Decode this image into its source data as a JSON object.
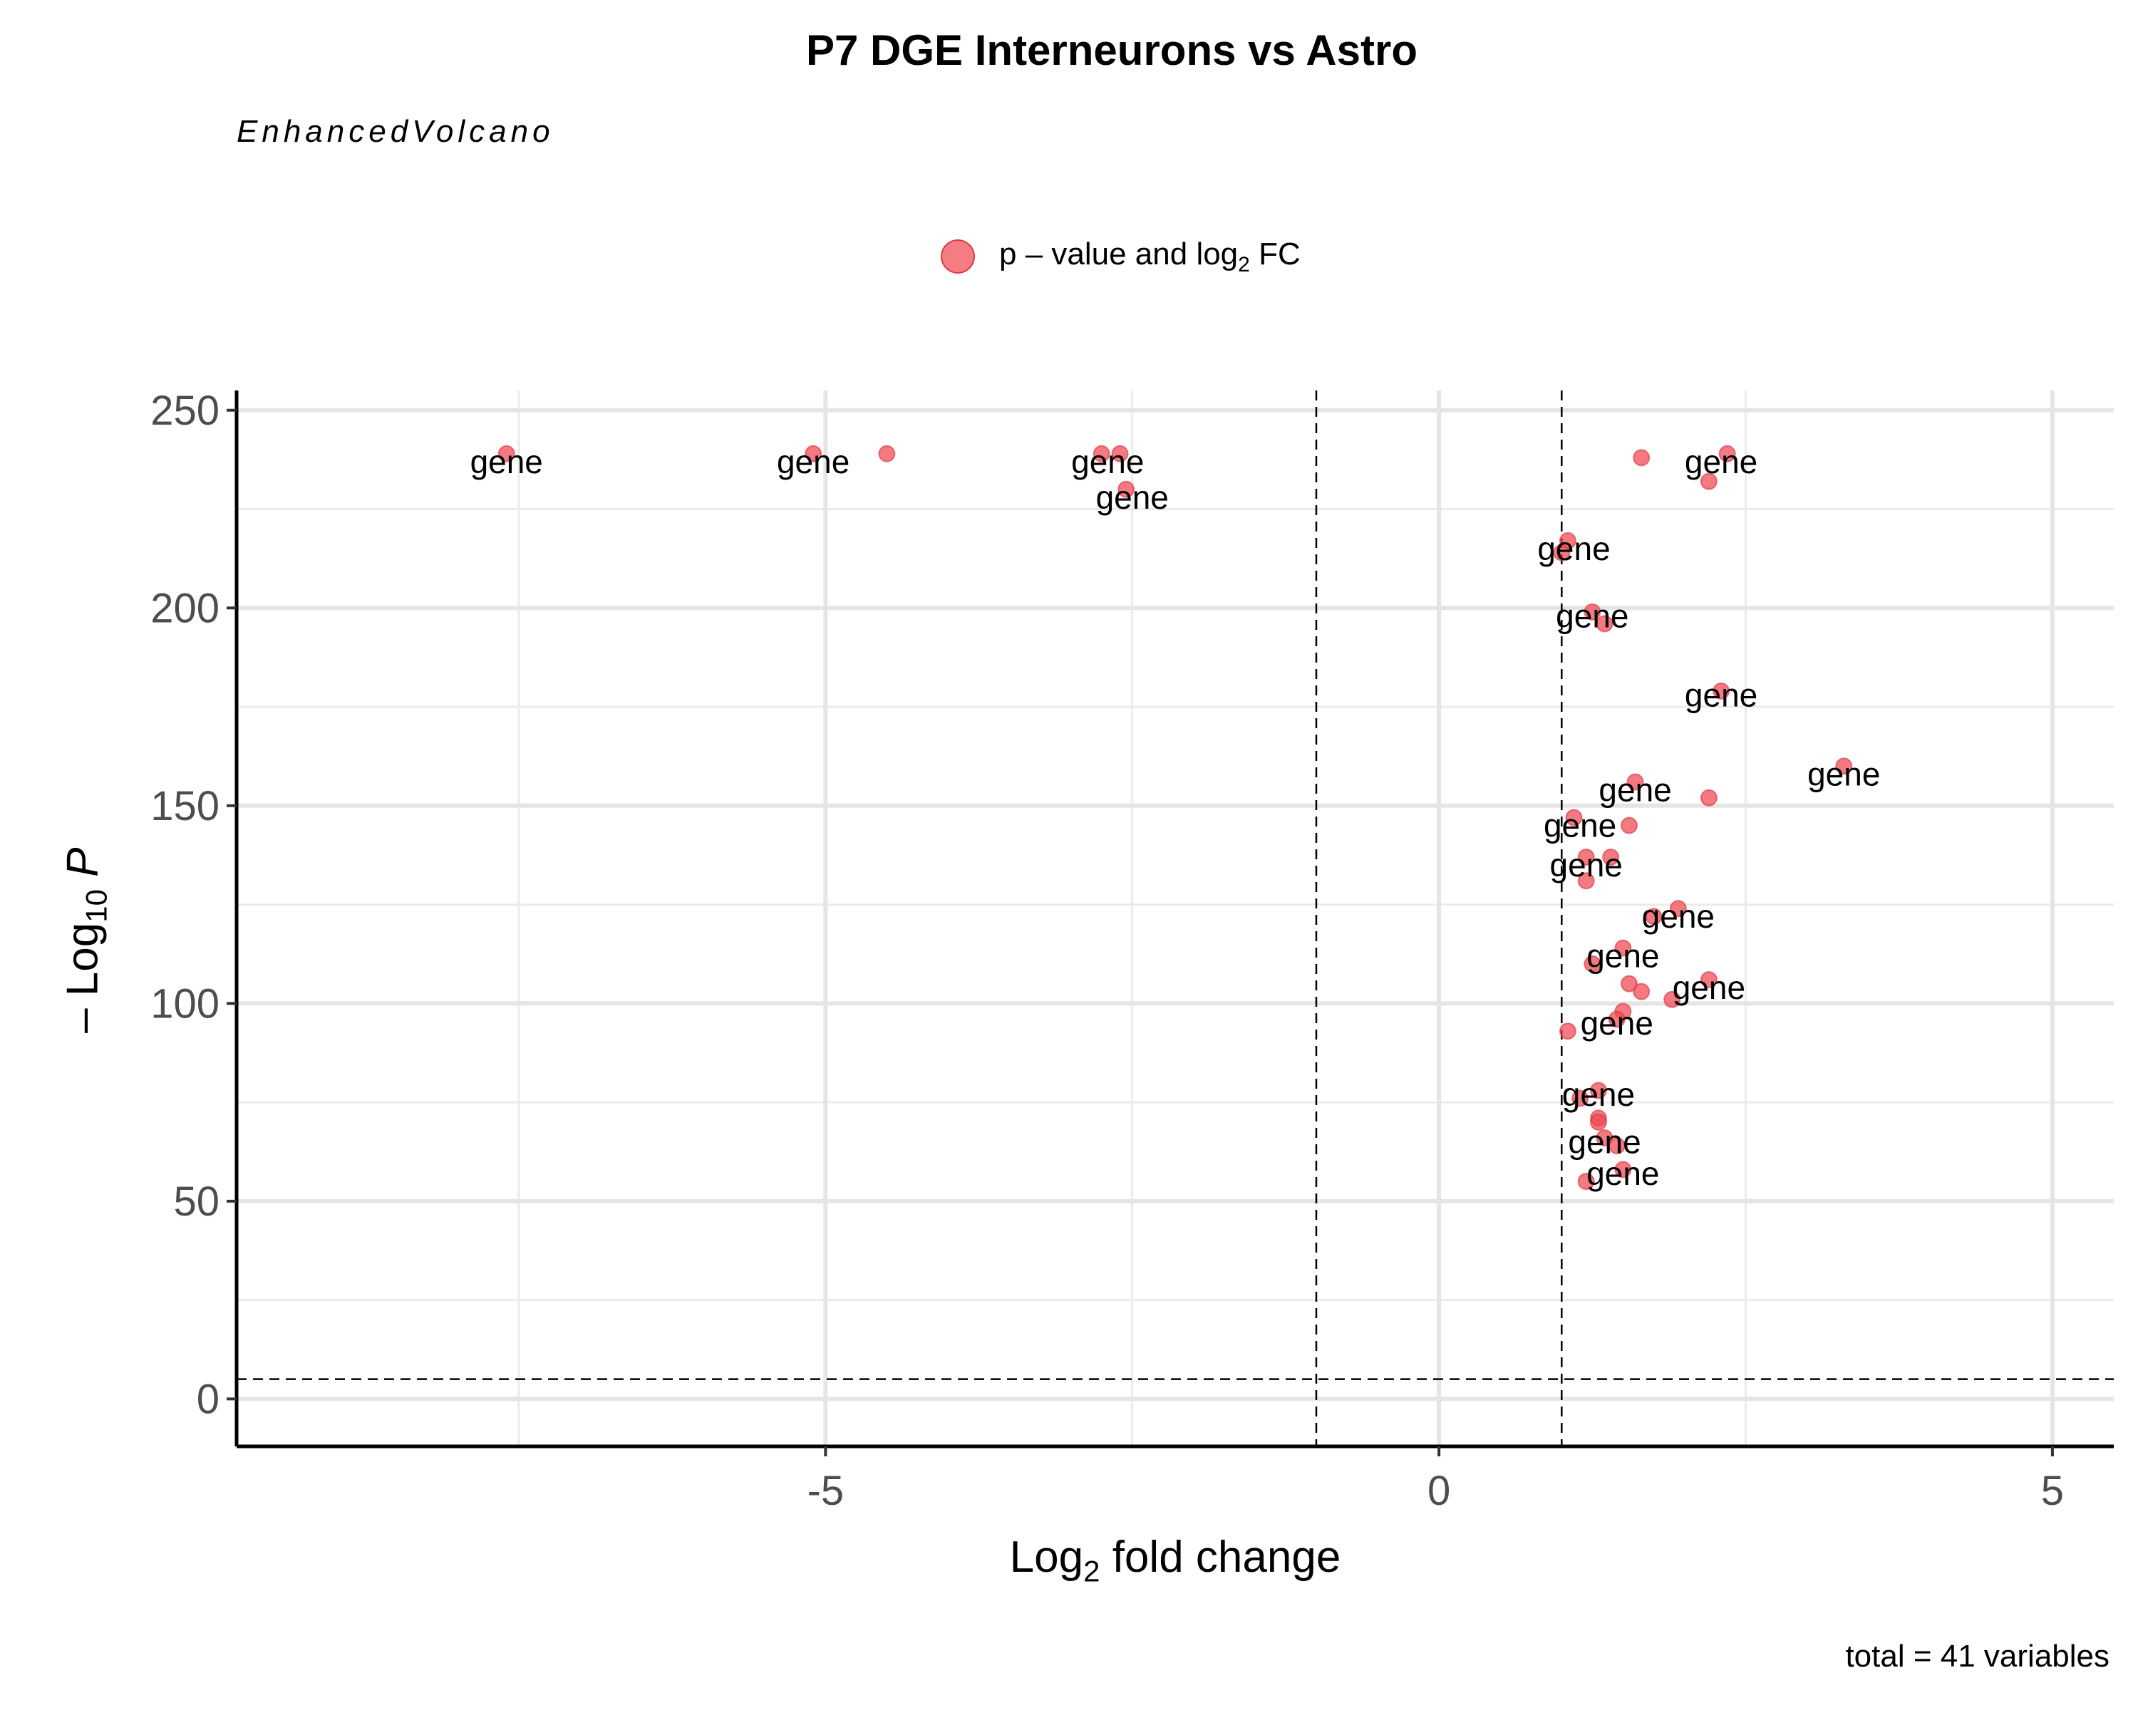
{
  "chart_data": {
    "type": "scatter",
    "title": "P7 DGE Interneurons vs Astro",
    "subtitle": "EnhancedVolcano",
    "legend": {
      "label_prefix": "p – value and log",
      "label_sub": "2",
      "label_suffix": " FC",
      "position": "top",
      "color": "#f0454f"
    },
    "xlabel": {
      "prefix": "Log",
      "sub": "2",
      "suffix": " fold change"
    },
    "ylabel": {
      "prefix": "– Log",
      "sub": "10",
      "italic": "P"
    },
    "caption": "total = 41 variables",
    "xlim": [
      -9.8,
      5.5
    ],
    "ylim": [
      -12,
      255
    ],
    "xticks": [
      -5,
      0,
      5
    ],
    "xtick_labels": [
      "-5",
      "0",
      "5"
    ],
    "yticks": [
      0,
      50,
      100,
      150,
      200,
      250
    ],
    "ytick_labels": [
      "0",
      "50",
      "100",
      "150",
      "200",
      "250"
    ],
    "fc_cutoff_lines": [
      -1,
      1
    ],
    "p_cutoff_line": 5,
    "grid": true,
    "point_color": "#f0454f",
    "points": [
      {
        "x": -7.6,
        "y": 239
      },
      {
        "x": -5.1,
        "y": 239
      },
      {
        "x": -4.5,
        "y": 239
      },
      {
        "x": -2.75,
        "y": 239
      },
      {
        "x": -2.6,
        "y": 239
      },
      {
        "x": -2.55,
        "y": 230
      },
      {
        "x": 1.65,
        "y": 238
      },
      {
        "x": 2.35,
        "y": 239
      },
      {
        "x": 2.2,
        "y": 232
      },
      {
        "x": 1.05,
        "y": 217
      },
      {
        "x": 1.0,
        "y": 214
      },
      {
        "x": 1.25,
        "y": 199
      },
      {
        "x": 1.35,
        "y": 196
      },
      {
        "x": 2.3,
        "y": 179
      },
      {
        "x": 3.3,
        "y": 160
      },
      {
        "x": 1.6,
        "y": 156
      },
      {
        "x": 2.2,
        "y": 152
      },
      {
        "x": 1.1,
        "y": 147
      },
      {
        "x": 1.55,
        "y": 145
      },
      {
        "x": 1.2,
        "y": 137
      },
      {
        "x": 1.4,
        "y": 137
      },
      {
        "x": 1.2,
        "y": 131
      },
      {
        "x": 1.95,
        "y": 124
      },
      {
        "x": 1.75,
        "y": 122
      },
      {
        "x": 1.5,
        "y": 114
      },
      {
        "x": 1.25,
        "y": 110
      },
      {
        "x": 2.2,
        "y": 106
      },
      {
        "x": 1.55,
        "y": 105
      },
      {
        "x": 1.65,
        "y": 103
      },
      {
        "x": 1.9,
        "y": 101
      },
      {
        "x": 1.5,
        "y": 98
      },
      {
        "x": 1.45,
        "y": 96
      },
      {
        "x": 1.05,
        "y": 93
      },
      {
        "x": 1.3,
        "y": 78
      },
      {
        "x": 1.15,
        "y": 76
      },
      {
        "x": 1.3,
        "y": 71
      },
      {
        "x": 1.3,
        "y": 70
      },
      {
        "x": 1.35,
        "y": 66
      },
      {
        "x": 1.45,
        "y": 64
      },
      {
        "x": 1.5,
        "y": 58
      },
      {
        "x": 1.2,
        "y": 55
      }
    ],
    "labels": [
      {
        "text": "gene",
        "x": -7.6,
        "y": 237
      },
      {
        "text": "gene",
        "x": -5.1,
        "y": 237
      },
      {
        "text": "gene",
        "x": -2.7,
        "y": 237
      },
      {
        "text": "gene",
        "x": -2.5,
        "y": 228
      },
      {
        "text": "gene",
        "x": 2.3,
        "y": 237
      },
      {
        "text": "gene",
        "x": 1.1,
        "y": 215
      },
      {
        "text": "gene",
        "x": 1.25,
        "y": 198
      },
      {
        "text": "gene",
        "x": 2.3,
        "y": 178
      },
      {
        "text": "gene",
        "x": 3.3,
        "y": 158
      },
      {
        "text": "gene",
        "x": 1.6,
        "y": 154
      },
      {
        "text": "gene",
        "x": 1.15,
        "y": 145
      },
      {
        "text": "gene",
        "x": 1.2,
        "y": 135
      },
      {
        "text": "gene",
        "x": 1.95,
        "y": 122
      },
      {
        "text": "gene",
        "x": 1.5,
        "y": 112
      },
      {
        "text": "gene",
        "x": 2.2,
        "y": 104
      },
      {
        "text": "gene",
        "x": 1.45,
        "y": 95
      },
      {
        "text": "gene",
        "x": 1.3,
        "y": 77
      },
      {
        "text": "gene",
        "x": 1.35,
        "y": 65
      },
      {
        "text": "gene",
        "x": 1.5,
        "y": 57
      }
    ]
  }
}
